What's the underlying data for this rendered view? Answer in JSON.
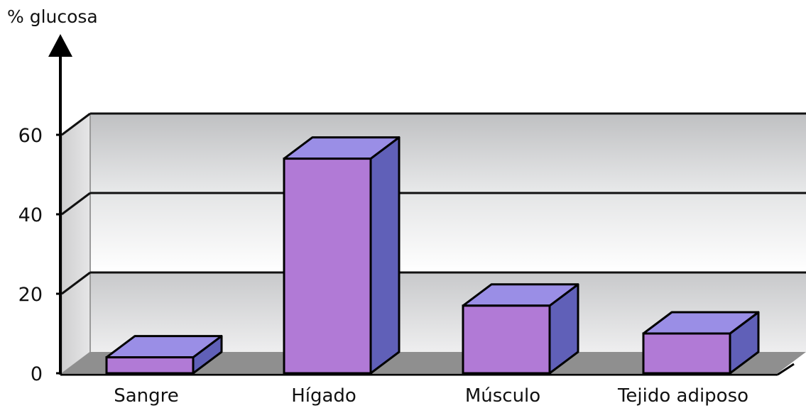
{
  "chart_data": {
    "type": "bar",
    "style": "3d",
    "ylabel": "% glucosa",
    "xlabel": "",
    "title": "",
    "categories": [
      "Sangre",
      "Hígado",
      "Músculo",
      "Tejido adiposo"
    ],
    "values": [
      4,
      54,
      17,
      10
    ],
    "ylim": [
      0,
      60
    ],
    "yticks": [
      0,
      20,
      40,
      60
    ],
    "grid": true,
    "legend": "none",
    "colors": {
      "bar_front": "#b17ad6",
      "bar_top": "#9a8ee6",
      "bar_side": "#6060b8",
      "floor": "#8f8f8f",
      "wall_band_1": "#d2d3d4",
      "wall_band_2": "#f2f2f2",
      "wall_band_3": "#d6d7d8"
    }
  }
}
